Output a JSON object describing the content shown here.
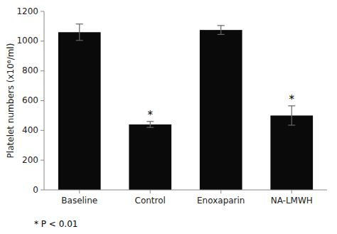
{
  "chart_data": {
    "type": "bar",
    "categories": [
      "Baseline",
      "Control",
      "Enoxaparin",
      "NA-LMWH"
    ],
    "values": [
      1060,
      440,
      1075,
      500
    ],
    "errors": [
      55,
      20,
      30,
      65
    ],
    "color": "#0a0a0a",
    "ylabel": "Platelet numbers (x10⁶/ml)",
    "ylim": [
      0,
      1200
    ],
    "yticks": [
      0,
      200,
      400,
      600,
      800,
      1000,
      1200
    ],
    "grid": false,
    "annotations": [
      {
        "text": "*",
        "category": "Control"
      },
      {
        "text": "*",
        "category": "NA-LMWH"
      }
    ],
    "note": "* P < 0.01"
  }
}
